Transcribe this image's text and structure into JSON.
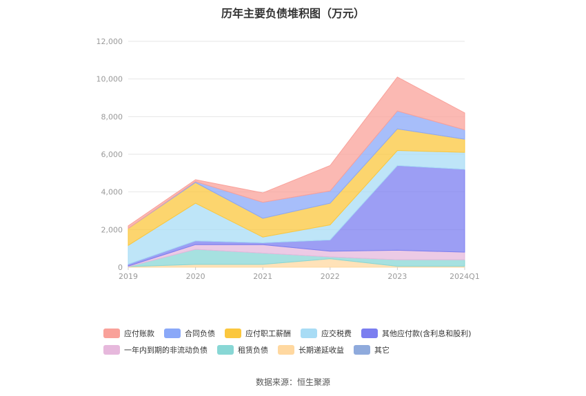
{
  "chart_data": {
    "type": "area",
    "stacked": true,
    "title": "历年主要负债堆积图（万元）",
    "categories": [
      "2019",
      "2020",
      "2021",
      "2022",
      "2023",
      "2024Q1"
    ],
    "ylim": [
      0,
      12000
    ],
    "yticks": [
      "0",
      "2,000",
      "4,000",
      "6,000",
      "8,000",
      "10,000",
      "12,000"
    ],
    "ytick_values": [
      0,
      2000,
      4000,
      6000,
      8000,
      10000,
      12000
    ],
    "grid": true,
    "legend_position": "bottom",
    "series": [
      {
        "name": "其它",
        "color": "#8faadc",
        "values": [
          0,
          0,
          0,
          0,
          0,
          0
        ]
      },
      {
        "name": "长期递延收益",
        "color": "#ffd8a0",
        "values": [
          30,
          150,
          150,
          450,
          50,
          50
        ]
      },
      {
        "name": "租赁负债",
        "color": "#88d7d5",
        "values": [
          0,
          800,
          600,
          100,
          350,
          350
        ]
      },
      {
        "name": "一年内到期的非流动负债",
        "color": "#e6b8dc",
        "values": [
          30,
          250,
          450,
          300,
          500,
          400
        ]
      },
      {
        "name": "其他应付款(含利息和股利)",
        "color": "#7b7ef0",
        "values": [
          100,
          200,
          100,
          600,
          4500,
          4400
        ]
      },
      {
        "name": "应交税费",
        "color": "#a8dcf5",
        "values": [
          1000,
          2000,
          300,
          800,
          800,
          900
        ]
      },
      {
        "name": "应付职工薪酬",
        "color": "#fbc73e",
        "values": [
          900,
          1100,
          1000,
          1150,
          1150,
          700
        ]
      },
      {
        "name": "合同负债",
        "color": "#8aa8f8",
        "values": [
          0,
          50,
          850,
          650,
          950,
          500
        ]
      },
      {
        "name": "应付账款",
        "color": "#f9a19a",
        "values": [
          140,
          100,
          500,
          1350,
          1800,
          900
        ]
      }
    ]
  },
  "legend": {
    "rows": [
      [
        {
          "label": "应付账款",
          "color": "#f9a19a"
        },
        {
          "label": "合同负债",
          "color": "#8aa8f8"
        },
        {
          "label": "应付职工薪酬",
          "color": "#fbc73e"
        },
        {
          "label": "应交税费",
          "color": "#a8dcf5"
        },
        {
          "label": "其他应付款(含利息和股利)",
          "color": "#7b7ef0"
        }
      ],
      [
        {
          "label": "一年内到期的非流动负债",
          "color": "#e6b8dc"
        },
        {
          "label": "租赁负债",
          "color": "#88d7d5"
        },
        {
          "label": "长期递延收益",
          "color": "#ffd8a0"
        },
        {
          "label": "其它",
          "color": "#8faadc"
        }
      ]
    ]
  },
  "source": "数据来源：恒生聚源"
}
